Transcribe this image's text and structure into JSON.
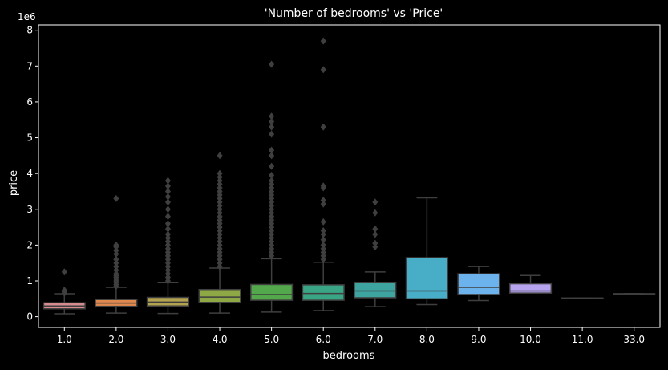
{
  "chart_data": {
    "type": "box",
    "title": "'Number of bedrooms' vs 'Price'",
    "xlabel": "bedrooms",
    "ylabel": "price",
    "y_multiplier_label": "1e6",
    "ylim": [
      -0.3,
      8.15
    ],
    "yticks": [
      0,
      1,
      2,
      3,
      4,
      5,
      6,
      7,
      8
    ],
    "grid": false,
    "categories": [
      "1.0",
      "2.0",
      "3.0",
      "4.0",
      "5.0",
      "6.0",
      "7.0",
      "8.0",
      "9.0",
      "10.0",
      "11.0",
      "33.0"
    ],
    "boxes": [
      {
        "category": "1.0",
        "color": "#d68b8f",
        "whislo": 0.08,
        "q1": 0.22,
        "med": 0.3,
        "q3": 0.39,
        "whishi": 0.64,
        "fliers": [
          0.66,
          0.7,
          0.74,
          1.25
        ]
      },
      {
        "category": "2.0",
        "color": "#e0894e",
        "whislo": 0.1,
        "q1": 0.29,
        "med": 0.38,
        "q3": 0.48,
        "whishi": 0.82,
        "fliers": [
          0.85,
          0.9,
          0.95,
          1.0,
          1.05,
          1.1,
          1.15,
          1.2,
          1.3,
          1.4,
          1.5,
          1.6,
          1.75,
          1.85,
          1.95,
          2.0,
          3.3
        ]
      },
      {
        "category": "3.0",
        "color": "#b3a24e",
        "whislo": 0.09,
        "q1": 0.3,
        "med": 0.41,
        "q3": 0.54,
        "whishi": 0.96,
        "fliers": [
          1.0,
          1.1,
          1.2,
          1.3,
          1.4,
          1.5,
          1.6,
          1.7,
          1.8,
          1.9,
          2.0,
          2.1,
          2.2,
          2.3,
          2.45,
          2.6,
          2.8,
          3.0,
          3.2,
          3.35,
          3.5,
          3.65,
          3.8
        ]
      },
      {
        "category": "4.0",
        "color": "#8da844",
        "whislo": 0.1,
        "q1": 0.4,
        "med": 0.55,
        "q3": 0.76,
        "whishi": 1.36,
        "fliers": [
          1.4,
          1.5,
          1.6,
          1.7,
          1.8,
          1.9,
          2.0,
          2.1,
          2.2,
          2.3,
          2.4,
          2.5,
          2.6,
          2.7,
          2.8,
          2.9,
          3.0,
          3.1,
          3.2,
          3.3,
          3.4,
          3.5,
          3.6,
          3.7,
          3.8,
          3.9,
          4.0,
          4.5
        ]
      },
      {
        "category": "5.0",
        "color": "#52a84a",
        "whislo": 0.13,
        "q1": 0.46,
        "med": 0.62,
        "q3": 0.9,
        "whishi": 1.62,
        "fliers": [
          1.7,
          1.8,
          1.9,
          2.0,
          2.1,
          2.2,
          2.3,
          2.4,
          2.5,
          2.6,
          2.7,
          2.8,
          2.9,
          3.0,
          3.1,
          3.2,
          3.3,
          3.4,
          3.5,
          3.6,
          3.7,
          3.8,
          3.95,
          4.2,
          4.5,
          4.65,
          5.1,
          5.3,
          5.45,
          5.6,
          7.05
        ]
      },
      {
        "category": "6.0",
        "color": "#3aa585",
        "whislo": 0.17,
        "q1": 0.46,
        "med": 0.65,
        "q3": 0.89,
        "whishi": 1.52,
        "fliers": [
          1.6,
          1.7,
          1.8,
          1.9,
          2.0,
          2.15,
          2.3,
          2.4,
          2.65,
          3.15,
          3.25,
          3.6,
          3.65,
          5.3,
          6.9,
          7.7
        ]
      },
      {
        "category": "7.0",
        "color": "#3ea4a0",
        "whislo": 0.28,
        "q1": 0.53,
        "med": 0.72,
        "q3": 0.96,
        "whishi": 1.25,
        "fliers": [
          1.95,
          2.05,
          2.3,
          2.45,
          2.9,
          3.2
        ]
      },
      {
        "category": "8.0",
        "color": "#48adc6",
        "whislo": 0.34,
        "q1": 0.5,
        "med": 0.72,
        "q3": 1.65,
        "whishi": 3.32,
        "fliers": []
      },
      {
        "category": "9.0",
        "color": "#6cb2ec",
        "whislo": 0.45,
        "q1": 0.62,
        "med": 0.82,
        "q3": 1.2,
        "whishi": 1.4,
        "fliers": []
      },
      {
        "category": "10.0",
        "color": "#b6a4f0",
        "whislo": 0.66,
        "q1": 0.66,
        "med": 0.72,
        "q3": 0.92,
        "whishi": 1.15,
        "fliers": []
      },
      {
        "category": "11.0",
        "color": "#e3a0e8",
        "whislo": 0.52,
        "q1": 0.52,
        "med": 0.52,
        "q3": 0.52,
        "whishi": 0.52,
        "fliers": []
      },
      {
        "category": "33.0",
        "color": "#e690c8",
        "whislo": 0.64,
        "q1": 0.64,
        "med": 0.64,
        "q3": 0.64,
        "whishi": 0.64,
        "fliers": []
      }
    ]
  }
}
